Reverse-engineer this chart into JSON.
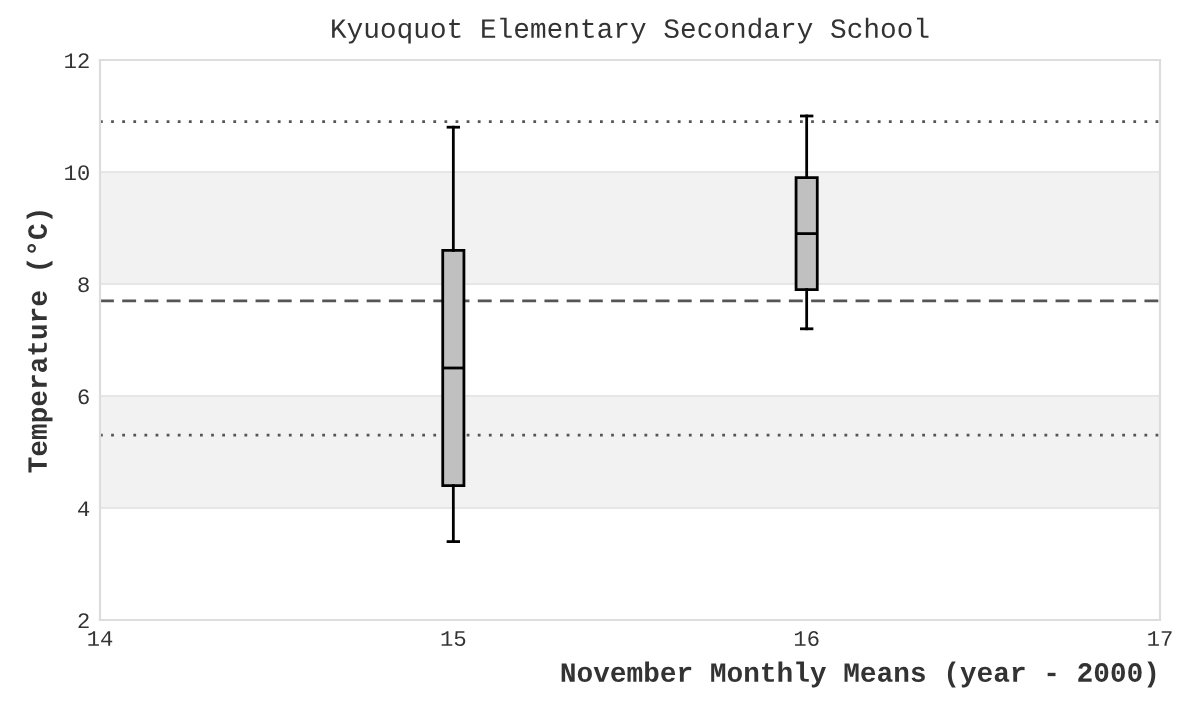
{
  "chart_data": {
    "type": "box",
    "title": "Kyuoquot Elementary Secondary School",
    "xlabel": "November Monthly Means (year - 2000)",
    "ylabel": "Temperature (°C)",
    "x": [
      15,
      16
    ],
    "boxes": [
      {
        "low": 3.4,
        "q1": 4.4,
        "median": 6.5,
        "q3": 8.6,
        "high": 10.8
      },
      {
        "low": 7.2,
        "q1": 7.9,
        "median": 8.9,
        "q3": 9.9,
        "high": 11.0
      }
    ],
    "color": "#c0c0c0",
    "xlim": [
      14,
      17
    ],
    "xticks": [
      14,
      15,
      16,
      17
    ],
    "ylim": [
      2,
      12
    ],
    "yticks": [
      2,
      4,
      6,
      8,
      10,
      12
    ],
    "grid": "y",
    "ref_lines": [
      {
        "axis": "y",
        "value": 10.9,
        "line_style": "dotted",
        "color": "#555555"
      },
      {
        "axis": "y",
        "value": 7.7,
        "line_style": "dashed",
        "color": "#555555"
      },
      {
        "axis": "y",
        "value": 5.3,
        "line_style": "dotted",
        "color": "#555555"
      }
    ],
    "bands": [
      {
        "axis": "y",
        "from": 8,
        "to": 10,
        "color": "#f2f2f2"
      },
      {
        "axis": "y",
        "from": 4,
        "to": 6,
        "color": "#f2f2f2"
      }
    ]
  }
}
